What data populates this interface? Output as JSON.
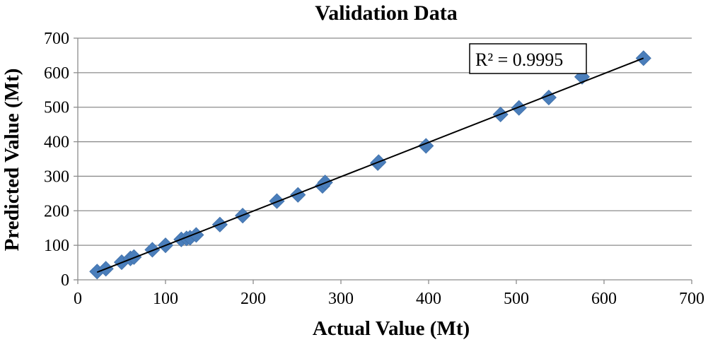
{
  "chart_data": {
    "type": "scatter",
    "title": "Validation Data",
    "xlabel": "Actual Value (Mt)",
    "ylabel": "Predicted Value (Mt)",
    "xlim": [
      0,
      700
    ],
    "ylim": [
      0,
      700
    ],
    "x_ticks": [
      0,
      100,
      200,
      300,
      400,
      500,
      600,
      700
    ],
    "y_ticks": [
      0,
      100,
      200,
      300,
      400,
      500,
      600,
      700
    ],
    "grid": "horizontal",
    "marker": "diamond",
    "marker_color": "#4a7ebb",
    "trendline": {
      "type": "linear",
      "x_range": [
        22,
        645
      ],
      "y_range": [
        22,
        642
      ],
      "color": "#000000"
    },
    "annotation": "R² = 0.9995",
    "series": [
      {
        "points": [
          [
            22,
            24
          ],
          [
            32,
            32
          ],
          [
            50,
            51
          ],
          [
            60,
            62
          ],
          [
            64,
            66
          ],
          [
            85,
            87
          ],
          [
            100,
            100
          ],
          [
            118,
            117
          ],
          [
            124,
            120
          ],
          [
            128,
            122
          ],
          [
            135,
            130
          ],
          [
            162,
            160
          ],
          [
            188,
            186
          ],
          [
            227,
            228
          ],
          [
            251,
            246
          ],
          [
            279,
            272
          ],
          [
            282,
            282
          ],
          [
            342,
            338
          ],
          [
            343,
            341
          ],
          [
            397,
            388
          ],
          [
            482,
            479
          ],
          [
            503,
            498
          ],
          [
            537,
            528
          ],
          [
            575,
            588
          ],
          [
            645,
            642
          ]
        ]
      }
    ]
  }
}
